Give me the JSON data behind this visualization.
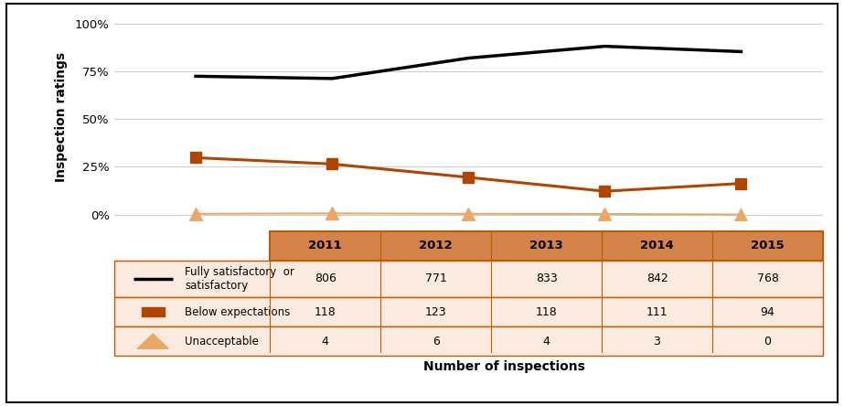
{
  "years": [
    2011,
    2012,
    2013,
    2014,
    2015
  ],
  "fully_satisfactory": [
    806,
    771,
    833,
    842,
    768
  ],
  "below_expectations": [
    118,
    123,
    118,
    111,
    94
  ],
  "unacceptable": [
    4,
    6,
    4,
    3,
    0
  ],
  "fs_pct": [
    0.725,
    0.713,
    0.82,
    0.882,
    0.854
  ],
  "be_pct": [
    0.298,
    0.265,
    0.195,
    0.122,
    0.163
  ],
  "un_pct": [
    0.004,
    0.006,
    0.004,
    0.003,
    0.0
  ],
  "line_color_fs": "#000000",
  "marker_color_be": "#B04500",
  "triangle_color": "#E8A868",
  "table_header_color": "#D4844A",
  "table_row_bg": "#FAEAE0",
  "table_border_color": "#C05A00",
  "ylabel": "Inspection ratings",
  "xlabel": "Number of inspections",
  "yticks": [
    0.0,
    0.25,
    0.5,
    0.75,
    1.0
  ],
  "ytick_labels": [
    "0%",
    "25%",
    "50%",
    "75%",
    "100%"
  ],
  "figsize": [
    9.23,
    4.44
  ],
  "dpi": 100
}
